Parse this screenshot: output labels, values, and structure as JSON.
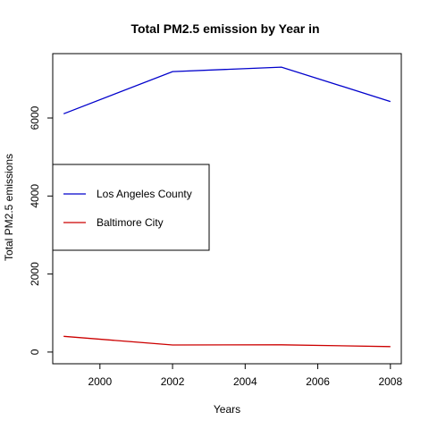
{
  "chart_data": {
    "type": "line",
    "title": "Total PM2.5 emission by Year in",
    "xlabel": "Years",
    "ylabel": "Total PM2.5 emissions",
    "x": [
      1999,
      2002,
      2005,
      2008
    ],
    "xlim": [
      1998.7,
      2008.3
    ],
    "ylim": [
      -300,
      7650
    ],
    "x_ticks": [
      "2000",
      "2002",
      "2004",
      "2006",
      "2008"
    ],
    "y_ticks": [
      "0",
      "2000",
      "4000",
      "6000"
    ],
    "series": [
      {
        "name": "Los Angeles County",
        "color": "#0000cc",
        "values": [
          6109,
          7189,
          7305,
          6421
        ]
      },
      {
        "name": "Baltimore City",
        "color": "#cc0000",
        "values": [
          403,
          180,
          186,
          140
        ]
      }
    ],
    "legend": "left-middle",
    "grid": false
  }
}
